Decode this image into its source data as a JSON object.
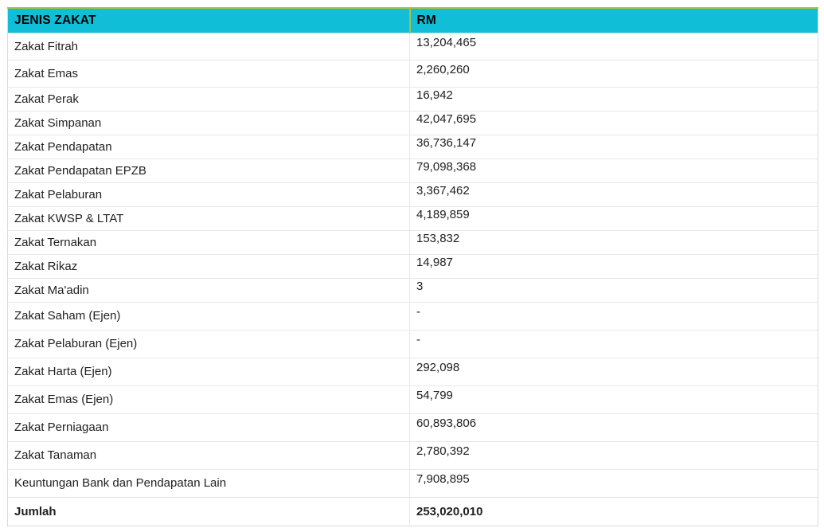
{
  "table": {
    "columns": [
      {
        "label": "JENIS ZAKAT"
      },
      {
        "label": "RM"
      }
    ],
    "rows": [
      {
        "label": "Zakat Fitrah",
        "value": "13,204,465"
      },
      {
        "label": "Zakat Emas",
        "value": "2,260,260"
      },
      {
        "label": "Zakat Perak",
        "value": "16,942"
      },
      {
        "label": "Zakat Simpanan",
        "value": "42,047,695"
      },
      {
        "label": "Zakat Pendapatan",
        "value": "36,736,147"
      },
      {
        "label": "Zakat Pendapatan EPZB",
        "value": "79,098,368"
      },
      {
        "label": "Zakat Pelaburan",
        "value": "3,367,462"
      },
      {
        "label": "Zakat KWSP & LTAT",
        "value": "4,189,859"
      },
      {
        "label": "Zakat Ternakan",
        "value": "153,832"
      },
      {
        "label": "Zakat Rikaz",
        "value": "14,987"
      },
      {
        "label": "Zakat Ma'adin",
        "value": "3"
      },
      {
        "label": "Zakat Saham (Ejen)",
        "value": "-"
      },
      {
        "label": "Zakat Pelaburan (Ejen)",
        "value": "-"
      },
      {
        "label": "Zakat Harta (Ejen)",
        "value": "292,098"
      },
      {
        "label": "Zakat Emas (Ejen)",
        "value": "54,799"
      },
      {
        "label": "Zakat Perniagaan",
        "value": "60,893,806"
      },
      {
        "label": "Zakat Tanaman",
        "value": "2,780,392"
      },
      {
        "label": "Keuntungan Bank dan Pendapatan Lain",
        "value": "7,908,895"
      }
    ],
    "total_row": {
      "label": "Jumlah",
      "value": "253,020,010"
    },
    "colors": {
      "header_bg": "#10bed8",
      "accent_line": "#a9c23f",
      "row_border": "#e6e8ea",
      "outer_border": "#d7dadd",
      "text": "#212121"
    }
  },
  "chart_data": {
    "type": "table",
    "title": "",
    "columns": [
      "JENIS ZAKAT",
      "RM"
    ],
    "categories": [
      "Zakat Fitrah",
      "Zakat Emas",
      "Zakat Perak",
      "Zakat Simpanan",
      "Zakat Pendapatan",
      "Zakat Pendapatan EPZB",
      "Zakat Pelaburan",
      "Zakat KWSP & LTAT",
      "Zakat Ternakan",
      "Zakat Rikaz",
      "Zakat Ma'adin",
      "Zakat Saham (Ejen)",
      "Zakat Pelaburan (Ejen)",
      "Zakat Harta (Ejen)",
      "Zakat Emas (Ejen)",
      "Zakat Perniagaan",
      "Zakat Tanaman",
      "Keuntungan Bank dan Pendapatan Lain"
    ],
    "values": [
      13204465,
      2260260,
      16942,
      42047695,
      36736147,
      79098368,
      3367462,
      4189859,
      153832,
      14987,
      3,
      null,
      null,
      292098,
      54799,
      60893806,
      2780392,
      7908895
    ],
    "total": {
      "label": "Jumlah",
      "value": 253020010
    }
  }
}
